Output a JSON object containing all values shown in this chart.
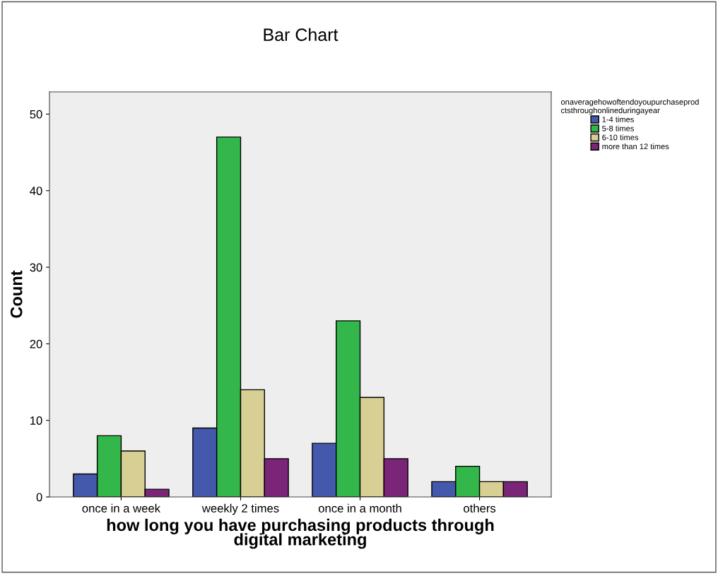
{
  "chart_data": {
    "type": "bar",
    "title": "Bar Chart",
    "xlabel": "how long you have purchasing products through\ndigital marketing",
    "ylabel": "Count",
    "legend_title": "onaveragehowoftendoyoupurchaseprod\nctsthroughonlineduringayear",
    "categories": [
      "once in a week",
      "weekly 2 times",
      "once in a month",
      "others"
    ],
    "series": [
      {
        "name": "1-4 times",
        "color": "#4458ac",
        "values": [
          3,
          9,
          7,
          2
        ]
      },
      {
        "name": "5-8 times",
        "color": "#33b64a",
        "values": [
          8,
          47,
          23,
          4
        ]
      },
      {
        "name": "6-10 times",
        "color": "#d8cf94",
        "values": [
          6,
          14,
          13,
          2
        ]
      },
      {
        "name": "more than 12 times",
        "color": "#7b2579",
        "values": [
          1,
          5,
          5,
          2
        ]
      }
    ],
    "ylim": [
      0,
      52.9
    ],
    "yticks": [
      0,
      10,
      20,
      30,
      40,
      50
    ],
    "grid": false,
    "legend": "top right"
  }
}
